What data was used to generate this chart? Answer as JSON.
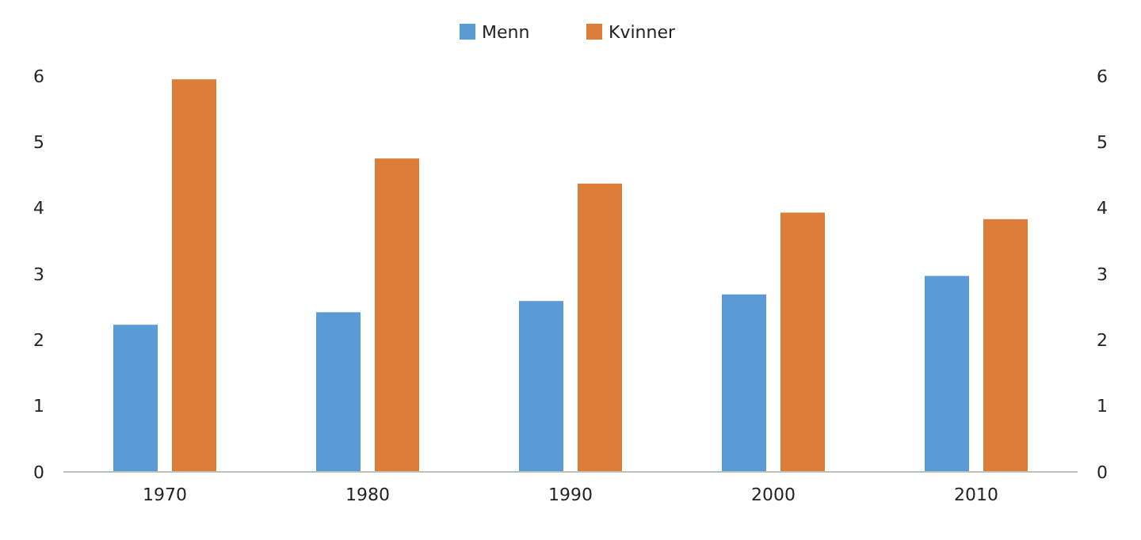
{
  "chart_data": {
    "type": "bar",
    "categories": [
      "1970",
      "1980",
      "1990",
      "2000",
      "2010"
    ],
    "series": [
      {
        "name": "Menn",
        "color": "#5b9bd5",
        "values": [
          2.23,
          2.42,
          2.59,
          2.69,
          2.97
        ]
      },
      {
        "name": "Kvinner",
        "color": "#dd7d3a",
        "values": [
          5.95,
          4.75,
          4.37,
          3.93,
          3.83
        ]
      }
    ],
    "ylim": [
      0,
      6
    ],
    "yticks": [
      0,
      1,
      2,
      3,
      4,
      5,
      6
    ],
    "y2lim": [
      0,
      6
    ],
    "y2ticks": [
      0,
      1,
      2,
      3,
      4,
      5,
      6
    ],
    "grid": false,
    "legend": "top"
  }
}
